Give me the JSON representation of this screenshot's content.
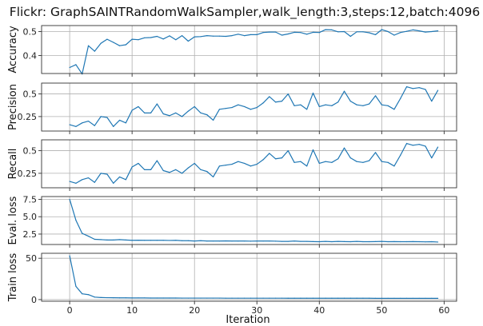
{
  "title": "Flickr: GraphSAINTRandomWalkSampler,walk_length:3,steps:12,batch:4096",
  "xlabel": "Iteration",
  "line_color": "#1f77b4",
  "chart_data": [
    {
      "type": "line",
      "ylabel": "Accuracy",
      "xlim": [
        -4.5,
        62
      ],
      "ylim": [
        0.325,
        0.525
      ],
      "x_ticks": [
        0,
        10,
        20,
        30,
        40,
        50,
        60
      ],
      "y_ticks": [
        0.4,
        0.5
      ],
      "grid": true,
      "x": [
        0,
        1,
        2,
        3,
        4,
        5,
        6,
        7,
        8,
        9,
        10,
        11,
        12,
        13,
        14,
        15,
        16,
        17,
        18,
        19,
        20,
        21,
        22,
        23,
        24,
        25,
        26,
        27,
        28,
        29,
        30,
        31,
        32,
        33,
        34,
        35,
        36,
        37,
        38,
        39,
        40,
        41,
        42,
        43,
        44,
        45,
        46,
        47,
        48,
        49,
        50,
        51,
        52,
        53,
        54,
        55,
        56,
        57,
        58,
        59
      ],
      "values": [
        0.35,
        0.362,
        0.323,
        0.441,
        0.418,
        0.451,
        0.468,
        0.455,
        0.441,
        0.445,
        0.468,
        0.466,
        0.474,
        0.475,
        0.48,
        0.469,
        0.482,
        0.466,
        0.483,
        0.46,
        0.478,
        0.479,
        0.483,
        0.481,
        0.481,
        0.48,
        0.483,
        0.489,
        0.483,
        0.487,
        0.487,
        0.496,
        0.498,
        0.498,
        0.485,
        0.49,
        0.497,
        0.496,
        0.489,
        0.497,
        0.496,
        0.508,
        0.507,
        0.499,
        0.5,
        0.48,
        0.499,
        0.499,
        0.495,
        0.487,
        0.508,
        0.5,
        0.485,
        0.496,
        0.501,
        0.507,
        0.503,
        0.498,
        0.5,
        0.503
      ]
    },
    {
      "type": "line",
      "ylabel": "Precision",
      "xlim": [
        -4.5,
        62
      ],
      "ylim": [
        0.09,
        0.62
      ],
      "x_ticks": [
        0,
        10,
        20,
        30,
        40,
        50,
        60
      ],
      "y_ticks": [
        0.25,
        0.5
      ],
      "grid": true,
      "x": [
        0,
        1,
        2,
        3,
        4,
        5,
        6,
        7,
        8,
        9,
        10,
        11,
        12,
        13,
        14,
        15,
        16,
        17,
        18,
        19,
        20,
        21,
        22,
        23,
        24,
        25,
        26,
        27,
        28,
        29,
        30,
        31,
        32,
        33,
        34,
        35,
        36,
        37,
        38,
        39,
        40,
        41,
        42,
        43,
        44,
        45,
        46,
        47,
        48,
        49,
        50,
        51,
        52,
        53,
        54,
        55,
        56,
        57,
        58,
        59
      ],
      "values": [
        0.16,
        0.14,
        0.18,
        0.2,
        0.15,
        0.25,
        0.24,
        0.14,
        0.21,
        0.18,
        0.32,
        0.36,
        0.29,
        0.29,
        0.39,
        0.28,
        0.26,
        0.29,
        0.25,
        0.31,
        0.36,
        0.29,
        0.27,
        0.21,
        0.33,
        0.34,
        0.35,
        0.38,
        0.36,
        0.33,
        0.35,
        0.4,
        0.47,
        0.41,
        0.42,
        0.5,
        0.37,
        0.38,
        0.33,
        0.51,
        0.36,
        0.38,
        0.37,
        0.41,
        0.53,
        0.42,
        0.38,
        0.37,
        0.39,
        0.48,
        0.38,
        0.37,
        0.33,
        0.45,
        0.58,
        0.56,
        0.57,
        0.55,
        0.42,
        0.54
      ]
    },
    {
      "type": "line",
      "ylabel": "Recall",
      "xlim": [
        -4.5,
        62
      ],
      "ylim": [
        0.09,
        0.62
      ],
      "x_ticks": [
        0,
        10,
        20,
        30,
        40,
        50,
        60
      ],
      "y_ticks": [
        0.25,
        0.5
      ],
      "grid": true,
      "x": [
        0,
        1,
        2,
        3,
        4,
        5,
        6,
        7,
        8,
        9,
        10,
        11,
        12,
        13,
        14,
        15,
        16,
        17,
        18,
        19,
        20,
        21,
        22,
        23,
        24,
        25,
        26,
        27,
        28,
        29,
        30,
        31,
        32,
        33,
        34,
        35,
        36,
        37,
        38,
        39,
        40,
        41,
        42,
        43,
        44,
        45,
        46,
        47,
        48,
        49,
        50,
        51,
        52,
        53,
        54,
        55,
        56,
        57,
        58,
        59
      ],
      "values": [
        0.16,
        0.14,
        0.18,
        0.2,
        0.15,
        0.25,
        0.24,
        0.14,
        0.21,
        0.18,
        0.32,
        0.36,
        0.29,
        0.29,
        0.39,
        0.28,
        0.26,
        0.29,
        0.25,
        0.31,
        0.36,
        0.29,
        0.27,
        0.21,
        0.33,
        0.34,
        0.35,
        0.38,
        0.36,
        0.33,
        0.35,
        0.4,
        0.47,
        0.41,
        0.42,
        0.5,
        0.37,
        0.38,
        0.33,
        0.51,
        0.36,
        0.38,
        0.37,
        0.41,
        0.53,
        0.42,
        0.38,
        0.37,
        0.39,
        0.48,
        0.38,
        0.37,
        0.33,
        0.45,
        0.58,
        0.56,
        0.57,
        0.55,
        0.42,
        0.54
      ]
    },
    {
      "type": "line",
      "ylabel": "Eval. loss",
      "xlim": [
        -4.5,
        62
      ],
      "ylim": [
        1.0,
        7.9
      ],
      "x_ticks": [
        0,
        10,
        20,
        30,
        40,
        50,
        60
      ],
      "y_ticks": [
        2.5,
        5.0,
        7.5
      ],
      "y_tick_labels": [
        "2.5",
        "5.0",
        "7.5"
      ],
      "grid": true,
      "x": [
        0,
        1,
        2,
        3,
        4,
        5,
        6,
        7,
        8,
        9,
        10,
        11,
        12,
        13,
        14,
        15,
        16,
        17,
        18,
        19,
        20,
        21,
        22,
        23,
        24,
        25,
        26,
        27,
        28,
        29,
        30,
        31,
        32,
        33,
        34,
        35,
        36,
        37,
        38,
        39,
        40,
        41,
        42,
        43,
        44,
        45,
        46,
        47,
        48,
        49,
        50,
        51,
        52,
        53,
        54,
        55,
        56,
        57,
        58,
        59
      ],
      "values": [
        7.5,
        4.5,
        2.6,
        2.2,
        1.75,
        1.7,
        1.65,
        1.65,
        1.7,
        1.65,
        1.6,
        1.62,
        1.6,
        1.6,
        1.6,
        1.6,
        1.58,
        1.6,
        1.55,
        1.55,
        1.5,
        1.55,
        1.5,
        1.5,
        1.5,
        1.52,
        1.5,
        1.5,
        1.5,
        1.48,
        1.5,
        1.5,
        1.5,
        1.48,
        1.45,
        1.45,
        1.5,
        1.45,
        1.45,
        1.42,
        1.4,
        1.45,
        1.4,
        1.45,
        1.42,
        1.4,
        1.45,
        1.4,
        1.4,
        1.42,
        1.45,
        1.4,
        1.42,
        1.4,
        1.4,
        1.42,
        1.4,
        1.38,
        1.4,
        1.35
      ]
    },
    {
      "type": "line",
      "ylabel": "Train loss",
      "xlim": [
        -4.5,
        62
      ],
      "ylim": [
        -2,
        56
      ],
      "x_ticks": [
        0,
        10,
        20,
        30,
        40,
        50,
        60
      ],
      "y_ticks": [
        0,
        50
      ],
      "grid": true,
      "x": [
        0,
        1,
        2,
        3,
        4,
        5,
        6,
        7,
        8,
        9,
        10,
        11,
        12,
        13,
        14,
        15,
        16,
        17,
        18,
        19,
        20,
        21,
        22,
        23,
        24,
        25,
        26,
        27,
        28,
        29,
        30,
        31,
        32,
        33,
        34,
        35,
        36,
        37,
        38,
        39,
        40,
        41,
        42,
        43,
        44,
        45,
        46,
        47,
        48,
        49,
        50,
        51,
        52,
        53,
        54,
        55,
        56,
        57,
        58,
        59
      ],
      "values": [
        53,
        16,
        7,
        6,
        3,
        2.5,
        2.3,
        2.2,
        2.1,
        2.1,
        2.0,
        2.0,
        2.0,
        1.9,
        1.9,
        1.9,
        1.9,
        1.9,
        1.8,
        1.8,
        1.8,
        1.8,
        1.8,
        1.8,
        1.8,
        1.7,
        1.7,
        1.7,
        1.7,
        1.7,
        1.7,
        1.7,
        1.7,
        1.7,
        1.7,
        1.6,
        1.6,
        1.6,
        1.6,
        1.6,
        1.6,
        1.6,
        1.6,
        1.6,
        1.6,
        1.6,
        1.6,
        1.6,
        1.6,
        1.5,
        1.5,
        1.5,
        1.5,
        1.5,
        1.5,
        1.5,
        1.5,
        1.5,
        1.5,
        1.5
      ]
    }
  ]
}
